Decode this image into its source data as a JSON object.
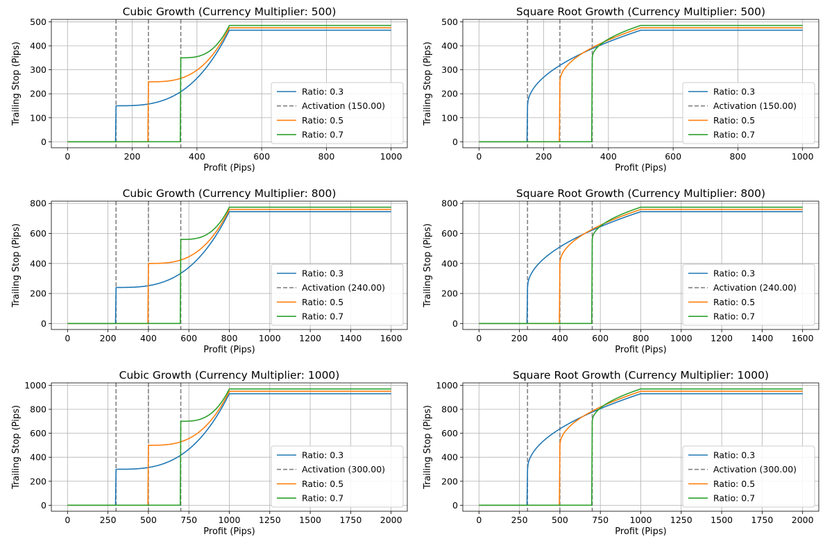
{
  "chart_data": [
    {
      "type": "line",
      "title": "Cubic Growth (Currency Multiplier: 500)",
      "xlabel": "Profit (Pips)",
      "ylabel": "Trailing Stop (Pips)",
      "xlim": [
        -50,
        1050
      ],
      "ylim": [
        -25,
        510
      ],
      "xticks": [
        0,
        200,
        400,
        600,
        800,
        1000
      ],
      "yticks": [
        0,
        100,
        200,
        300,
        400,
        500
      ],
      "grid": true,
      "legend_position": "lower right",
      "growth": "cubic",
      "multiplier": 500,
      "x_max": 1000,
      "activation_lines": [
        150,
        250,
        350
      ],
      "legend": [
        "Ratio: 0.3",
        "Activation (150.00)",
        "Ratio: 0.5",
        "Ratio: 0.7"
      ],
      "series": [
        {
          "name": "Ratio: 0.3",
          "ratio": 0.3,
          "activation": 150,
          "start": 150,
          "plateau": 465,
          "full_at": 500
        },
        {
          "name": "Ratio: 0.5",
          "ratio": 0.5,
          "activation": 250,
          "start": 250,
          "plateau": 475,
          "full_at": 500
        },
        {
          "name": "Ratio: 0.7",
          "ratio": 0.7,
          "activation": 350,
          "start": 350,
          "plateau": 485,
          "full_at": 500
        }
      ]
    },
    {
      "type": "line",
      "title": "Square Root Growth (Currency Multiplier: 500)",
      "xlabel": "Profit (Pips)",
      "ylabel": "Trailing Stop (Pips)",
      "xlim": [
        -50,
        1050
      ],
      "ylim": [
        -25,
        510
      ],
      "xticks": [
        0,
        200,
        400,
        600,
        800,
        1000
      ],
      "yticks": [
        0,
        100,
        200,
        300,
        400,
        500
      ],
      "grid": true,
      "legend_position": "lower right",
      "growth": "sqrt",
      "multiplier": 500,
      "x_max": 1000,
      "activation_lines": [
        150,
        250,
        350
      ],
      "legend": [
        "Ratio: 0.3",
        "Activation (150.00)",
        "Ratio: 0.5",
        "Ratio: 0.7"
      ],
      "series": [
        {
          "name": "Ratio: 0.3",
          "ratio": 0.3,
          "activation": 150,
          "start": 150,
          "plateau": 465,
          "full_at": 500
        },
        {
          "name": "Ratio: 0.5",
          "ratio": 0.5,
          "activation": 250,
          "start": 250,
          "plateau": 475,
          "full_at": 500
        },
        {
          "name": "Ratio: 0.7",
          "ratio": 0.7,
          "activation": 350,
          "start": 350,
          "plateau": 485,
          "full_at": 500
        }
      ]
    },
    {
      "type": "line",
      "title": "Cubic Growth (Currency Multiplier: 800)",
      "xlabel": "Profit (Pips)",
      "ylabel": "Trailing Stop (Pips)",
      "xlim": [
        -80,
        1680
      ],
      "ylim": [
        -40,
        815
      ],
      "xticks": [
        0,
        200,
        400,
        600,
        800,
        1000,
        1200,
        1400,
        1600
      ],
      "yticks": [
        0,
        200,
        400,
        600,
        800
      ],
      "grid": true,
      "legend_position": "lower right",
      "growth": "cubic",
      "multiplier": 800,
      "x_max": 1600,
      "activation_lines": [
        240,
        400,
        560
      ],
      "legend": [
        "Ratio: 0.3",
        "Activation (240.00)",
        "Ratio: 0.5",
        "Ratio: 0.7"
      ],
      "series": [
        {
          "name": "Ratio: 0.3",
          "ratio": 0.3,
          "activation": 240,
          "start": 240,
          "plateau": 745,
          "full_at": 800
        },
        {
          "name": "Ratio: 0.5",
          "ratio": 0.5,
          "activation": 400,
          "start": 400,
          "plateau": 760,
          "full_at": 800
        },
        {
          "name": "Ratio: 0.7",
          "ratio": 0.7,
          "activation": 560,
          "start": 560,
          "plateau": 775,
          "full_at": 800
        }
      ]
    },
    {
      "type": "line",
      "title": "Square Root Growth (Currency Multiplier: 800)",
      "xlabel": "Profit (Pips)",
      "ylabel": "Trailing Stop (Pips)",
      "xlim": [
        -80,
        1680
      ],
      "ylim": [
        -40,
        815
      ],
      "xticks": [
        0,
        200,
        400,
        600,
        800,
        1000,
        1200,
        1400,
        1600
      ],
      "yticks": [
        0,
        200,
        400,
        600,
        800
      ],
      "grid": true,
      "legend_position": "lower right",
      "growth": "sqrt",
      "multiplier": 800,
      "x_max": 1600,
      "activation_lines": [
        240,
        400,
        560
      ],
      "legend": [
        "Ratio: 0.3",
        "Activation (240.00)",
        "Ratio: 0.5",
        "Ratio: 0.7"
      ],
      "series": [
        {
          "name": "Ratio: 0.3",
          "ratio": 0.3,
          "activation": 240,
          "start": 240,
          "plateau": 745,
          "full_at": 800
        },
        {
          "name": "Ratio: 0.5",
          "ratio": 0.5,
          "activation": 400,
          "start": 400,
          "plateau": 760,
          "full_at": 800
        },
        {
          "name": "Ratio: 0.7",
          "ratio": 0.7,
          "activation": 560,
          "start": 560,
          "plateau": 775,
          "full_at": 800
        }
      ]
    },
    {
      "type": "line",
      "title": "Cubic Growth (Currency Multiplier: 1000)",
      "xlabel": "Profit (Pips)",
      "ylabel": "Trailing Stop (Pips)",
      "xlim": [
        -100,
        2100
      ],
      "ylim": [
        -50,
        1020
      ],
      "xticks": [
        0,
        250,
        500,
        750,
        1000,
        1250,
        1500,
        1750,
        2000
      ],
      "yticks": [
        0,
        200,
        400,
        600,
        800,
        1000
      ],
      "grid": true,
      "legend_position": "lower right",
      "growth": "cubic",
      "multiplier": 1000,
      "x_max": 2000,
      "activation_lines": [
        300,
        500,
        700
      ],
      "legend": [
        "Ratio: 0.3",
        "Activation (300.00)",
        "Ratio: 0.5",
        "Ratio: 0.7"
      ],
      "series": [
        {
          "name": "Ratio: 0.3",
          "ratio": 0.3,
          "activation": 300,
          "start": 300,
          "plateau": 930,
          "full_at": 1000
        },
        {
          "name": "Ratio: 0.5",
          "ratio": 0.5,
          "activation": 500,
          "start": 500,
          "plateau": 950,
          "full_at": 1000
        },
        {
          "name": "Ratio: 0.7",
          "ratio": 0.7,
          "activation": 700,
          "start": 700,
          "plateau": 970,
          "full_at": 1000
        }
      ]
    },
    {
      "type": "line",
      "title": "Square Root Growth (Currency Multiplier: 1000)",
      "xlabel": "Profit (Pips)",
      "ylabel": "Trailing Stop (Pips)",
      "xlim": [
        -100,
        2100
      ],
      "ylim": [
        -50,
        1020
      ],
      "xticks": [
        0,
        250,
        500,
        750,
        1000,
        1250,
        1500,
        1750,
        2000
      ],
      "yticks": [
        0,
        200,
        400,
        600,
        800,
        1000
      ],
      "grid": true,
      "legend_position": "lower right",
      "growth": "sqrt",
      "multiplier": 1000,
      "x_max": 2000,
      "activation_lines": [
        300,
        500,
        700
      ],
      "legend": [
        "Ratio: 0.3",
        "Activation (300.00)",
        "Ratio: 0.5",
        "Ratio: 0.7"
      ],
      "series": [
        {
          "name": "Ratio: 0.3",
          "ratio": 0.3,
          "activation": 300,
          "start": 300,
          "plateau": 930,
          "full_at": 1000
        },
        {
          "name": "Ratio: 0.5",
          "ratio": 0.5,
          "activation": 500,
          "start": 500,
          "plateau": 950,
          "full_at": 1000
        },
        {
          "name": "Ratio: 0.7",
          "ratio": 0.7,
          "activation": 700,
          "start": 700,
          "plateau": 970,
          "full_at": 1000
        }
      ]
    }
  ],
  "colors": {
    "series": [
      "#1f77b4",
      "#ff7f0e",
      "#2ca02c"
    ],
    "activation": "#808080",
    "grid": "#b0b0b0",
    "axis": "#000000",
    "legend_border": "#cccccc"
  }
}
